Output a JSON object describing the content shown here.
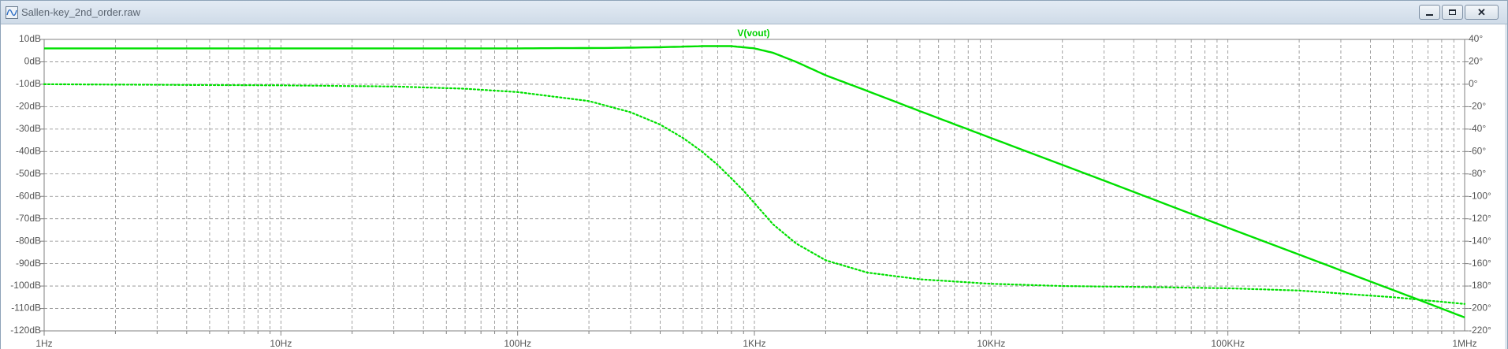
{
  "window": {
    "title": "Sallen-key_2nd_order.raw",
    "icons": {
      "app": "waveform-app-icon",
      "minimize": "minimize-icon",
      "maximize": "maximize-icon",
      "close": "close-icon"
    }
  },
  "chart_data": {
    "type": "line",
    "title": "V(vout)",
    "xlabel": "",
    "ylabel": "",
    "x_scale": "log",
    "xlim": [
      1,
      1000000
    ],
    "x_ticks": [
      1,
      10,
      100,
      1000,
      10000,
      100000,
      1000000
    ],
    "x_tick_labels": [
      "1Hz",
      "10Hz",
      "100Hz",
      "1KHz",
      "10KHz",
      "100KHz",
      "1MHz"
    ],
    "ylim_left": [
      -120,
      10
    ],
    "y_ticks_left": [
      10,
      0,
      -10,
      -20,
      -30,
      -40,
      -50,
      -60,
      -70,
      -80,
      -90,
      -100,
      -110,
      -120
    ],
    "y_tick_labels_left": [
      "10dB",
      "0dB",
      "-10dB",
      "-20dB",
      "-30dB",
      "-40dB",
      "-50dB",
      "-60dB",
      "-70dB",
      "-80dB",
      "-90dB",
      "-100dB",
      "-110dB",
      "-120dB"
    ],
    "ylim_right": [
      -220,
      40
    ],
    "y_ticks_right": [
      40,
      20,
      0,
      -20,
      -40,
      -60,
      -80,
      -100,
      -120,
      -140,
      -160,
      -180,
      -200,
      -220
    ],
    "y_tick_labels_right": [
      "40°",
      "20°",
      "0°",
      "-20°",
      "-40°",
      "-60°",
      "-80°",
      "-100°",
      "-120°",
      "-140°",
      "-160°",
      "-180°",
      "-200°",
      "-220°"
    ],
    "grid": true,
    "color": "#00e000",
    "series": [
      {
        "name": "V(vout)",
        "axis": "left",
        "style": "solid",
        "x": [
          1,
          10,
          100,
          250,
          400,
          600,
          800,
          1000,
          1200,
          1500,
          2000,
          3000,
          5000,
          10000,
          30000,
          100000,
          300000,
          600000,
          1000000
        ],
        "y": [
          6,
          6,
          6,
          6.2,
          6.5,
          7,
          7,
          6,
          4,
          0,
          -6,
          -13,
          -22,
          -34,
          -53,
          -74,
          -93,
          -105,
          -114
        ]
      },
      {
        "name": "phase",
        "axis": "right",
        "style": "dotted",
        "x": [
          1,
          10,
          30,
          60,
          100,
          200,
          300,
          400,
          500,
          600,
          700,
          800,
          900,
          1000,
          1200,
          1500,
          2000,
          3000,
          5000,
          10000,
          20000,
          50000,
          100000,
          200000,
          500000,
          1000000
        ],
        "y": [
          0,
          -1,
          -2,
          -4,
          -7,
          -15,
          -25,
          -36,
          -48,
          -60,
          -72,
          -84,
          -95,
          -106,
          -125,
          -142,
          -157,
          -168,
          -174,
          -178,
          -180,
          -181,
          -182,
          -184,
          -190,
          -196
        ]
      }
    ]
  }
}
